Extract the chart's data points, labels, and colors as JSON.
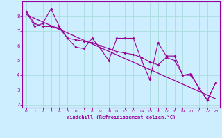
{
  "title": "",
  "xlabel": "Windchill (Refroidissement éolien,°C)",
  "ylabel": "",
  "bg_color": "#cceeff",
  "grid_color": "#aadddd",
  "line_color": "#990099",
  "xlim": [
    -0.5,
    23.5
  ],
  "ylim": [
    1.8,
    9.0
  ],
  "xticks": [
    0,
    1,
    2,
    3,
    4,
    5,
    6,
    7,
    8,
    9,
    10,
    11,
    12,
    13,
    14,
    15,
    16,
    17,
    18,
    19,
    20,
    21,
    22,
    23
  ],
  "yticks": [
    2,
    3,
    4,
    5,
    6,
    7,
    8
  ],
  "series1_x": [
    0,
    1,
    2,
    3,
    4,
    5,
    6,
    7,
    8,
    9,
    10,
    11,
    12,
    13,
    14,
    15,
    16,
    17,
    18,
    19,
    20,
    21,
    22,
    23
  ],
  "series1_y": [
    8.3,
    7.3,
    7.5,
    8.5,
    7.3,
    6.5,
    5.9,
    5.8,
    6.5,
    5.8,
    5.0,
    6.5,
    6.5,
    6.5,
    5.0,
    3.7,
    6.2,
    5.3,
    5.3,
    4.0,
    4.1,
    3.1,
    2.3,
    3.5
  ],
  "series2_x": [
    0,
    1,
    2,
    3,
    4,
    5,
    6,
    7,
    8,
    9,
    10,
    11,
    12,
    13,
    14,
    15,
    16,
    17,
    18,
    19,
    20,
    21,
    22,
    23
  ],
  "series2_y": [
    8.3,
    7.5,
    7.3,
    7.3,
    7.2,
    6.5,
    6.4,
    6.3,
    6.2,
    6.0,
    5.8,
    5.6,
    5.5,
    5.4,
    5.2,
    4.9,
    4.7,
    5.2,
    5.0,
    4.0,
    4.0,
    3.1,
    2.3,
    3.5
  ],
  "trend_x": [
    0,
    23
  ],
  "trend_y": [
    8.1,
    2.4
  ]
}
